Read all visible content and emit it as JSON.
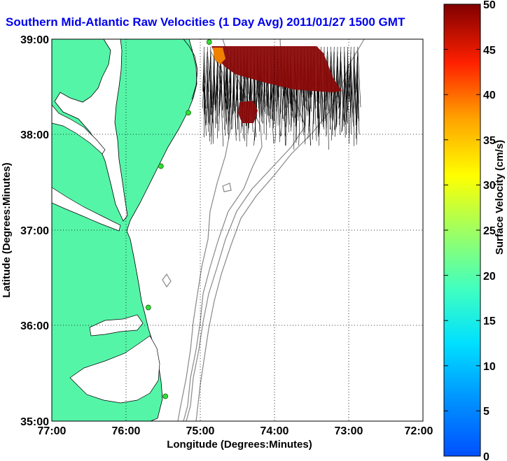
{
  "title": "Southern Mid-Atlantic Raw Velocities (1 Day Avg) 2011/01/27 1500 GMT",
  "map": {
    "x_label": "Longitude (Degrees:Minutes)",
    "y_label": "Latitude (Degrees:Minutes)",
    "lon_ticks": [
      "77:00",
      "76:00",
      "75:00",
      "74:00",
      "73:00",
      "72:00"
    ],
    "lat_ticks": [
      "39:00",
      "38:00",
      "37:00",
      "36:00",
      "35:00"
    ],
    "lon_range": [
      -77,
      -72
    ],
    "lat_range": [
      35,
      39
    ],
    "grid": "dotted",
    "colors": {
      "land": "#55f5a8",
      "water": "#ffffff",
      "isobath": "#888888",
      "station": "#33dd33",
      "frame": "#000000"
    }
  },
  "colorbar": {
    "label": "Surface Velocity (cm/s)",
    "ticks": [
      "0",
      "5",
      "10",
      "15",
      "20",
      "25",
      "30",
      "35",
      "40",
      "45",
      "50"
    ],
    "range": [
      0,
      50
    ],
    "colormap": "jet"
  },
  "chart_data": {
    "type": "heatmap",
    "title": "Southern Mid-Atlantic Raw Velocities (1 Day Avg) 2011/01/27 1500 GMT",
    "xlabel": "Longitude (Degrees:Minutes)",
    "ylabel": "Latitude (Degrees:Minutes)",
    "xlim": [
      -77,
      -72
    ],
    "ylim": [
      35,
      39
    ],
    "colorbar_range": [
      0,
      50
    ],
    "colorbar_label": "Surface Velocity (cm/s)",
    "velocity_region": {
      "lon": [
        -74.95,
        -72.85
      ],
      "lat": [
        38.45,
        38.92
      ],
      "dominant_speed_cm_s": 50
    },
    "stations": [
      {
        "lon": -74.88,
        "lat": 38.97
      },
      {
        "lon": -75.16,
        "lat": 38.23
      },
      {
        "lon": -75.53,
        "lat": 37.67
      },
      {
        "lon": -75.7,
        "lat": 36.19
      },
      {
        "lon": -75.47,
        "lat": 35.26
      }
    ]
  }
}
